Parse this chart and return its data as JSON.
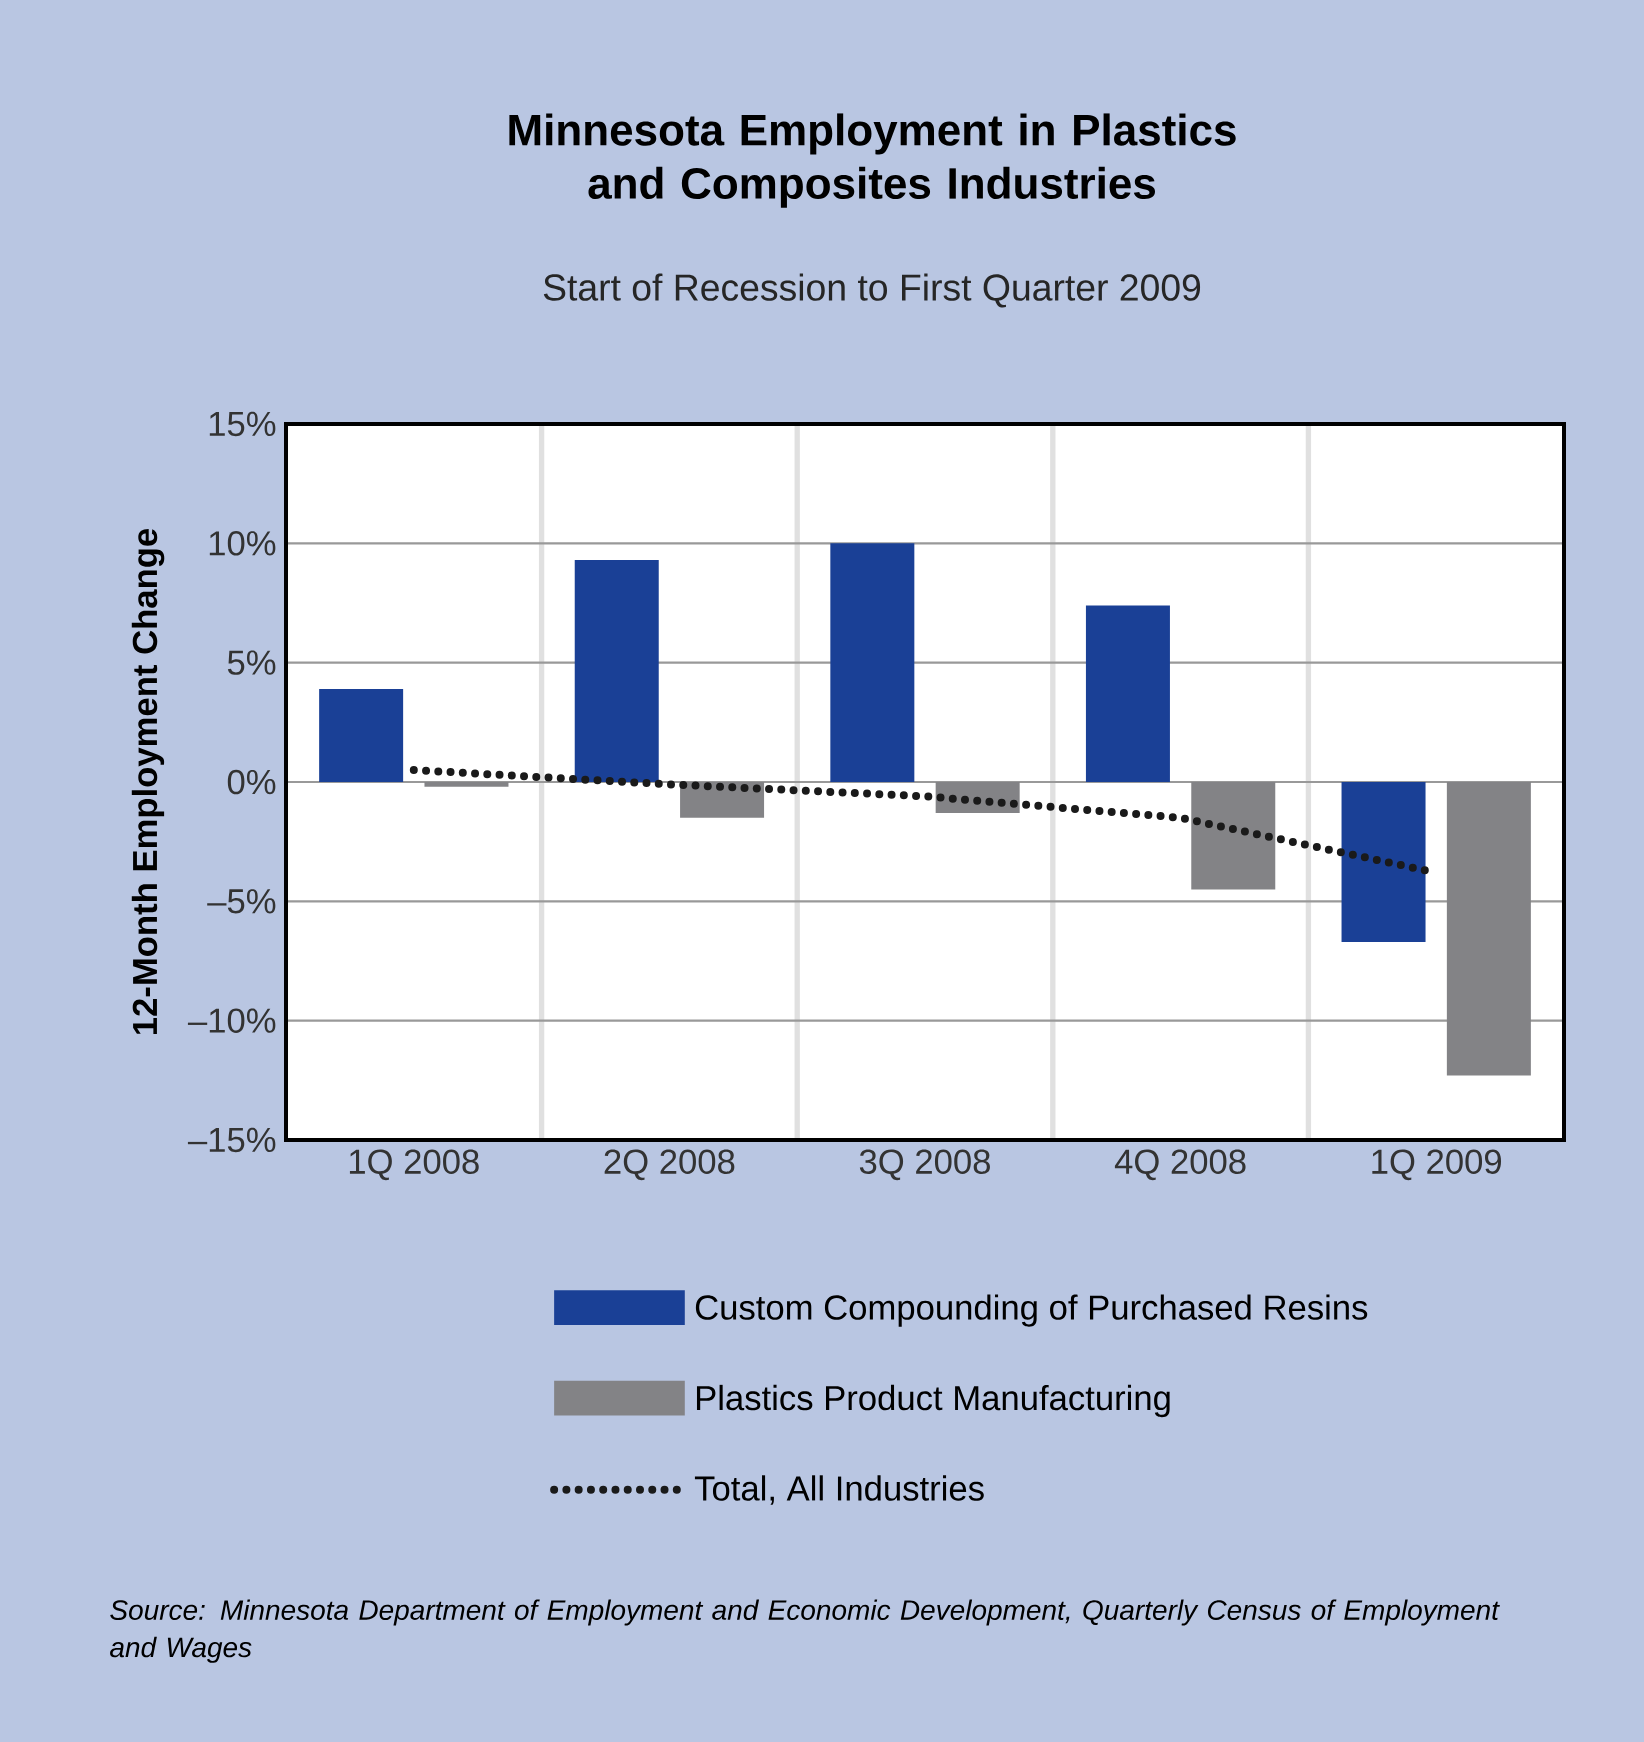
{
  "chart_data": {
    "type": "bar",
    "title": "Minnesota Employment in Plastics and Composites Industries",
    "subtitle": "Start of Recession to First Quarter 2009",
    "ylabel": "12-Month Employment Change",
    "categories": [
      "1Q 2008",
      "2Q 2008",
      "3Q 2008",
      "4Q 2008",
      "1Q 2009"
    ],
    "series": [
      {
        "name": "Custom Compounding of Purchased Resins",
        "color": "#1a4096",
        "values": [
          3.9,
          9.3,
          10.0,
          7.4,
          -6.7
        ]
      },
      {
        "name": "Plastics Product Manufacturing",
        "color": "#838386",
        "values": [
          -0.2,
          -1.5,
          -1.3,
          -4.5,
          -12.3
        ]
      },
      {
        "name": "Total, All Industries",
        "type": "line",
        "color": "#1a1a1a",
        "line_style": "dotted",
        "values": [
          0.5,
          -0.1,
          -0.6,
          -1.5,
          -3.8
        ]
      }
    ],
    "ylim": [
      -15,
      15
    ],
    "yticks": [
      {
        "value": -15,
        "label": "–15%"
      },
      {
        "value": -10,
        "label": "–10%"
      },
      {
        "value": -5,
        "label": "–5%"
      },
      {
        "value": 0,
        "label": "0%"
      },
      {
        "value": 5,
        "label": "5%"
      },
      {
        "value": 10,
        "label": "10%"
      },
      {
        "value": 15,
        "label": "15%"
      }
    ],
    "grid": true,
    "legend": "bottom",
    "marker": "none",
    "annotations": [
      "Source:  Minnesota Department of Employment and Economic Development, Quarterly Census of Employment and Wages"
    ]
  }
}
